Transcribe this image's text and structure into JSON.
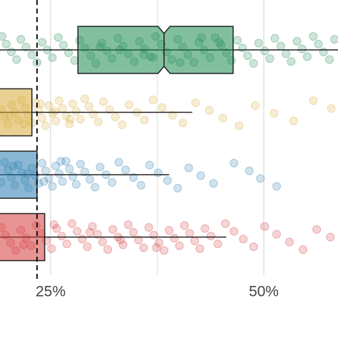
{
  "chart_data": {
    "type": "boxplot",
    "orientation": "horizontal",
    "xlim": [
      19.06,
      58.7
    ],
    "xticks": [
      {
        "value": 25,
        "label": "25%"
      },
      {
        "value": 50,
        "label": "50%"
      }
    ],
    "minor_grid": [
      37.5
    ],
    "grid": true,
    "reference_line": 23.4,
    "series": [
      {
        "color": "#1b8a50",
        "q1": 28.2,
        "median": 38.3,
        "q3": 46.4,
        "notch": [
          37.6,
          39.0
        ],
        "points": [
          19.3,
          19.8,
          20.4,
          21.0,
          21.5,
          22.1,
          22.8,
          23.4,
          24.0,
          24.6,
          25.2,
          25.9,
          26.5,
          27.1,
          27.8,
          28.4,
          29.0,
          29.7,
          30.3,
          31.0,
          31.6,
          32.2,
          32.9,
          33.5,
          34.1,
          34.8,
          35.4,
          36.0,
          36.7,
          37.3,
          38.0,
          38.6,
          39.2,
          39.9,
          40.5,
          41.1,
          41.8,
          42.4,
          43.0,
          43.7,
          44.3,
          45.0,
          45.6,
          46.2,
          46.9,
          47.5,
          48.1,
          48.8,
          49.4,
          50.1,
          50.7,
          51.3,
          52.0,
          52.6,
          53.2,
          53.9,
          54.5,
          55.1,
          55.8,
          56.4,
          57.0,
          57.7,
          58.3,
          30.8,
          35.9,
          40.2,
          44.8,
          33.1,
          37.0,
          42.7
        ]
      },
      {
        "color": "#d8ab3a",
        "q3": 22.8,
        "whisker_high": 41.6,
        "points": [
          19.2,
          19.6,
          20.0,
          20.4,
          20.8,
          21.2,
          21.6,
          22.0,
          22.4,
          22.8,
          23.2,
          23.6,
          24.0,
          24.4,
          24.8,
          25.2,
          25.6,
          26.0,
          26.4,
          26.8,
          27.2,
          27.6,
          28.0,
          28.5,
          29.0,
          29.5,
          30.0,
          30.6,
          31.2,
          31.9,
          32.6,
          33.4,
          34.2,
          35.1,
          36.0,
          37.0,
          38.1,
          39.3,
          40.5,
          42.0,
          43.6,
          45.2,
          47.1,
          49.0,
          51.2,
          53.5,
          55.8,
          57.9,
          20.2,
          21.9,
          23.8,
          25.5,
          27.3
        ]
      },
      {
        "color": "#2a7db0",
        "q3": 23.4,
        "whisker_high": 38.9,
        "points": [
          19.2,
          19.6,
          20.0,
          20.4,
          20.8,
          21.2,
          21.6,
          22.0,
          22.4,
          22.8,
          23.2,
          23.6,
          24.0,
          24.4,
          24.8,
          25.2,
          25.6,
          26.0,
          26.4,
          26.8,
          27.2,
          27.6,
          28.0,
          28.5,
          29.0,
          29.6,
          30.2,
          30.8,
          31.5,
          32.2,
          33.0,
          33.8,
          34.7,
          35.6,
          36.6,
          37.6,
          38.7,
          39.9,
          41.2,
          42.6,
          44.1,
          46.5,
          48.3,
          49.6,
          51.5,
          20.6,
          22.3,
          24.2,
          26.2
        ]
      },
      {
        "color": "#d53a3c",
        "q3": 24.3,
        "whisker_high": 45.6,
        "points": [
          19.2,
          19.7,
          20.3,
          20.9,
          21.5,
          22.1,
          22.7,
          23.3,
          23.9,
          24.5,
          25.1,
          25.7,
          26.3,
          26.9,
          27.5,
          28.1,
          28.7,
          29.3,
          29.9,
          30.5,
          31.1,
          31.7,
          32.3,
          32.9,
          33.5,
          34.1,
          34.7,
          35.3,
          35.9,
          36.5,
          37.1,
          37.7,
          38.3,
          38.9,
          39.5,
          40.1,
          40.7,
          41.3,
          41.9,
          42.5,
          43.1,
          43.8,
          44.6,
          45.5,
          46.5,
          47.6,
          48.8,
          50.1,
          51.5,
          53.0,
          54.6,
          56.2,
          57.8,
          21.8,
          25.4,
          29.6,
          33.2,
          37.4
        ]
      }
    ]
  }
}
